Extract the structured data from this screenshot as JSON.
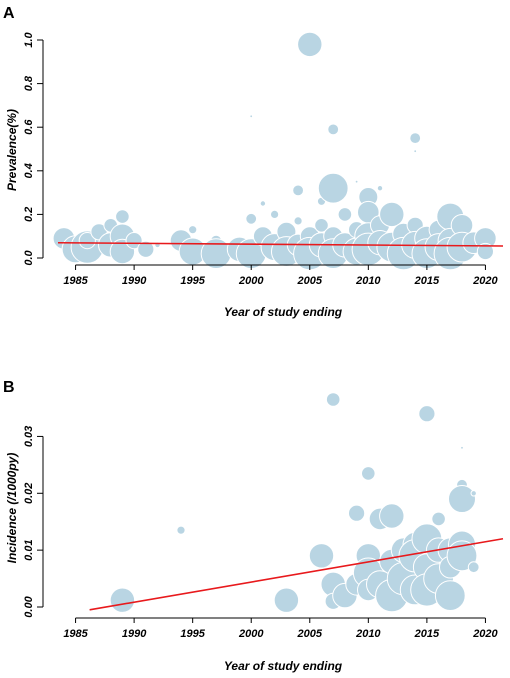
{
  "chart_data": [
    {
      "panel_label": "A",
      "type": "scatter",
      "subtype": "bubble",
      "xlabel": "Year of study ending",
      "ylabel": "Prevalence(%)",
      "xlim": [
        1983.5,
        2021.5
      ],
      "ylim": [
        0,
        1.0
      ],
      "x_ticks": [
        1985,
        1990,
        1995,
        2000,
        2005,
        2010,
        2015,
        2020
      ],
      "y_ticks": [
        0.0,
        0.2,
        0.4,
        0.6,
        0.8,
        1.0
      ],
      "y_tick_labels": [
        "0.0",
        "0.2",
        "0.4",
        "0.6",
        "0.8",
        "1.0"
      ],
      "bubble_color": "#b9d5e3",
      "trend_color": "#e8191c",
      "trend_line": {
        "x": [
          1983.5,
          2021.5
        ],
        "y": [
          0.07,
          0.055
        ]
      },
      "points": [
        {
          "x": 1984,
          "y": 0.09,
          "size": 8
        },
        {
          "x": 1985,
          "y": 0.04,
          "size": 10
        },
        {
          "x": 1986,
          "y": 0.05,
          "size": 12
        },
        {
          "x": 1986,
          "y": 0.08,
          "size": 6
        },
        {
          "x": 1987,
          "y": 0.12,
          "size": 6
        },
        {
          "x": 1988,
          "y": 0.06,
          "size": 9
        },
        {
          "x": 1988,
          "y": 0.15,
          "size": 5
        },
        {
          "x": 1989,
          "y": 0.19,
          "size": 5
        },
        {
          "x": 1989,
          "y": 0.1,
          "size": 9
        },
        {
          "x": 1989,
          "y": 0.03,
          "size": 9
        },
        {
          "x": 1990,
          "y": 0.08,
          "size": 6
        },
        {
          "x": 1991,
          "y": 0.04,
          "size": 6
        },
        {
          "x": 1992,
          "y": 0.06,
          "size": 2
        },
        {
          "x": 1994,
          "y": 0.08,
          "size": 8
        },
        {
          "x": 1995,
          "y": 0.13,
          "size": 3
        },
        {
          "x": 1995,
          "y": 0.03,
          "size": 10
        },
        {
          "x": 1997,
          "y": 0.08,
          "size": 4
        },
        {
          "x": 1997,
          "y": 0.02,
          "size": 11
        },
        {
          "x": 1999,
          "y": 0.04,
          "size": 9
        },
        {
          "x": 2000,
          "y": 0.65,
          "size": 1
        },
        {
          "x": 2000,
          "y": 0.18,
          "size": 4
        },
        {
          "x": 2000,
          "y": 0.02,
          "size": 11
        },
        {
          "x": 2001,
          "y": 0.25,
          "size": 2
        },
        {
          "x": 2001,
          "y": 0.1,
          "size": 7
        },
        {
          "x": 2002,
          "y": 0.05,
          "size": 10
        },
        {
          "x": 2002,
          "y": 0.2,
          "size": 3
        },
        {
          "x": 2003,
          "y": 0.12,
          "size": 7
        },
        {
          "x": 2003,
          "y": 0.03,
          "size": 11
        },
        {
          "x": 2004,
          "y": 0.31,
          "size": 4
        },
        {
          "x": 2004,
          "y": 0.06,
          "size": 8
        },
        {
          "x": 2004,
          "y": 0.17,
          "size": 3
        },
        {
          "x": 2005,
          "y": 0.98,
          "size": 9
        },
        {
          "x": 2005,
          "y": 0.1,
          "size": 7
        },
        {
          "x": 2005,
          "y": 0.02,
          "size": 12
        },
        {
          "x": 2006,
          "y": 0.26,
          "size": 3
        },
        {
          "x": 2006,
          "y": 0.06,
          "size": 9
        },
        {
          "x": 2006,
          "y": 0.15,
          "size": 5
        },
        {
          "x": 2007,
          "y": 0.59,
          "size": 4
        },
        {
          "x": 2007,
          "y": 0.32,
          "size": 11
        },
        {
          "x": 2007,
          "y": 0.1,
          "size": 7
        },
        {
          "x": 2007,
          "y": 0.02,
          "size": 11
        },
        {
          "x": 2008,
          "y": 0.2,
          "size": 5
        },
        {
          "x": 2008,
          "y": 0.06,
          "size": 9
        },
        {
          "x": 2009,
          "y": 0.35,
          "size": 1
        },
        {
          "x": 2009,
          "y": 0.13,
          "size": 6
        },
        {
          "x": 2009,
          "y": 0.03,
          "size": 10
        },
        {
          "x": 2010,
          "y": 0.28,
          "size": 7
        },
        {
          "x": 2010,
          "y": 0.21,
          "size": 8
        },
        {
          "x": 2010,
          "y": 0.1,
          "size": 10
        },
        {
          "x": 2010,
          "y": 0.04,
          "size": 12
        },
        {
          "x": 2011,
          "y": 0.32,
          "size": 2
        },
        {
          "x": 2011,
          "y": 0.15,
          "size": 7
        },
        {
          "x": 2011,
          "y": 0.07,
          "size": 9
        },
        {
          "x": 2012,
          "y": 0.2,
          "size": 9
        },
        {
          "x": 2012,
          "y": 0.05,
          "size": 11
        },
        {
          "x": 2013,
          "y": 0.11,
          "size": 8
        },
        {
          "x": 2013,
          "y": 0.02,
          "size": 12
        },
        {
          "x": 2014,
          "y": 0.55,
          "size": 4
        },
        {
          "x": 2014,
          "y": 0.49,
          "size": 1
        },
        {
          "x": 2014,
          "y": 0.15,
          "size": 6
        },
        {
          "x": 2014,
          "y": 0.06,
          "size": 10
        },
        {
          "x": 2015,
          "y": 0.09,
          "size": 9
        },
        {
          "x": 2015,
          "y": 0.02,
          "size": 11
        },
        {
          "x": 2016,
          "y": 0.13,
          "size": 7
        },
        {
          "x": 2016,
          "y": 0.05,
          "size": 10
        },
        {
          "x": 2017,
          "y": 0.19,
          "size": 10
        },
        {
          "x": 2017,
          "y": 0.08,
          "size": 9
        },
        {
          "x": 2017,
          "y": 0.02,
          "size": 12
        },
        {
          "x": 2018,
          "y": 0.15,
          "size": 8
        },
        {
          "x": 2018,
          "y": 0.05,
          "size": 11
        },
        {
          "x": 2019,
          "y": 0.07,
          "size": 8
        },
        {
          "x": 2020,
          "y": 0.09,
          "size": 8
        },
        {
          "x": 2020,
          "y": 0.03,
          "size": 6
        }
      ]
    },
    {
      "panel_label": "B",
      "type": "scatter",
      "subtype": "bubble",
      "xlabel": "Year of study ending",
      "ylabel": "Incidence (/1000py)",
      "xlim": [
        1983.5,
        2021.5
      ],
      "ylim": [
        0,
        0.035
      ],
      "x_ticks": [
        1985,
        1990,
        1995,
        2000,
        2005,
        2010,
        2015,
        2020
      ],
      "y_ticks": [
        0.0,
        0.01,
        0.02,
        0.03
      ],
      "y_tick_labels": [
        "0.00",
        "0.01",
        "0.02",
        "0.03"
      ],
      "bubble_color": "#b9d5e3",
      "trend_color": "#e8191c",
      "trend_line": {
        "x": [
          1986.2,
          2021.5
        ],
        "y": [
          -0.0005,
          0.012
        ]
      },
      "points": [
        {
          "x": 1989,
          "y": 0.0012,
          "size": 9
        },
        {
          "x": 1994,
          "y": 0.0135,
          "size": 3
        },
        {
          "x": 2003,
          "y": 0.0012,
          "size": 9
        },
        {
          "x": 2006,
          "y": 0.009,
          "size": 9
        },
        {
          "x": 2007,
          "y": 0.0365,
          "size": 5
        },
        {
          "x": 2007,
          "y": 0.004,
          "size": 9
        },
        {
          "x": 2007,
          "y": 0.001,
          "size": 6
        },
        {
          "x": 2008,
          "y": 0.002,
          "size": 9
        },
        {
          "x": 2009,
          "y": 0.0165,
          "size": 6
        },
        {
          "x": 2009,
          "y": 0.004,
          "size": 8
        },
        {
          "x": 2010,
          "y": 0.0235,
          "size": 5
        },
        {
          "x": 2010,
          "y": 0.009,
          "size": 9
        },
        {
          "x": 2010,
          "y": 0.006,
          "size": 11
        },
        {
          "x": 2010,
          "y": 0.003,
          "size": 8
        },
        {
          "x": 2011,
          "y": 0.0155,
          "size": 8
        },
        {
          "x": 2011,
          "y": 0.004,
          "size": 10
        },
        {
          "x": 2012,
          "y": 0.016,
          "size": 9
        },
        {
          "x": 2012,
          "y": 0.008,
          "size": 9
        },
        {
          "x": 2012,
          "y": 0.002,
          "size": 12
        },
        {
          "x": 2013,
          "y": 0.01,
          "size": 9
        },
        {
          "x": 2013,
          "y": 0.005,
          "size": 12
        },
        {
          "x": 2014,
          "y": 0.011,
          "size": 9
        },
        {
          "x": 2014,
          "y": 0.003,
          "size": 11
        },
        {
          "x": 2014,
          "y": 0.009,
          "size": 12
        },
        {
          "x": 2015,
          "y": 0.034,
          "size": 6
        },
        {
          "x": 2015,
          "y": 0.012,
          "size": 11
        },
        {
          "x": 2015,
          "y": 0.007,
          "size": 10
        },
        {
          "x": 2015,
          "y": 0.003,
          "size": 12
        },
        {
          "x": 2016,
          "y": 0.0155,
          "size": 5
        },
        {
          "x": 2016,
          "y": 0.005,
          "size": 11
        },
        {
          "x": 2016,
          "y": 0.01,
          "size": 9
        },
        {
          "x": 2017,
          "y": 0.01,
          "size": 9
        },
        {
          "x": 2017,
          "y": 0.002,
          "size": 11
        },
        {
          "x": 2017,
          "y": 0.007,
          "size": 8
        },
        {
          "x": 2018,
          "y": 0.028,
          "size": 1
        },
        {
          "x": 2018,
          "y": 0.0215,
          "size": 4
        },
        {
          "x": 2018,
          "y": 0.019,
          "size": 10
        },
        {
          "x": 2018,
          "y": 0.011,
          "size": 10
        },
        {
          "x": 2018,
          "y": 0.009,
          "size": 11
        },
        {
          "x": 2019,
          "y": 0.02,
          "size": 2
        },
        {
          "x": 2019,
          "y": 0.007,
          "size": 4
        }
      ]
    }
  ]
}
